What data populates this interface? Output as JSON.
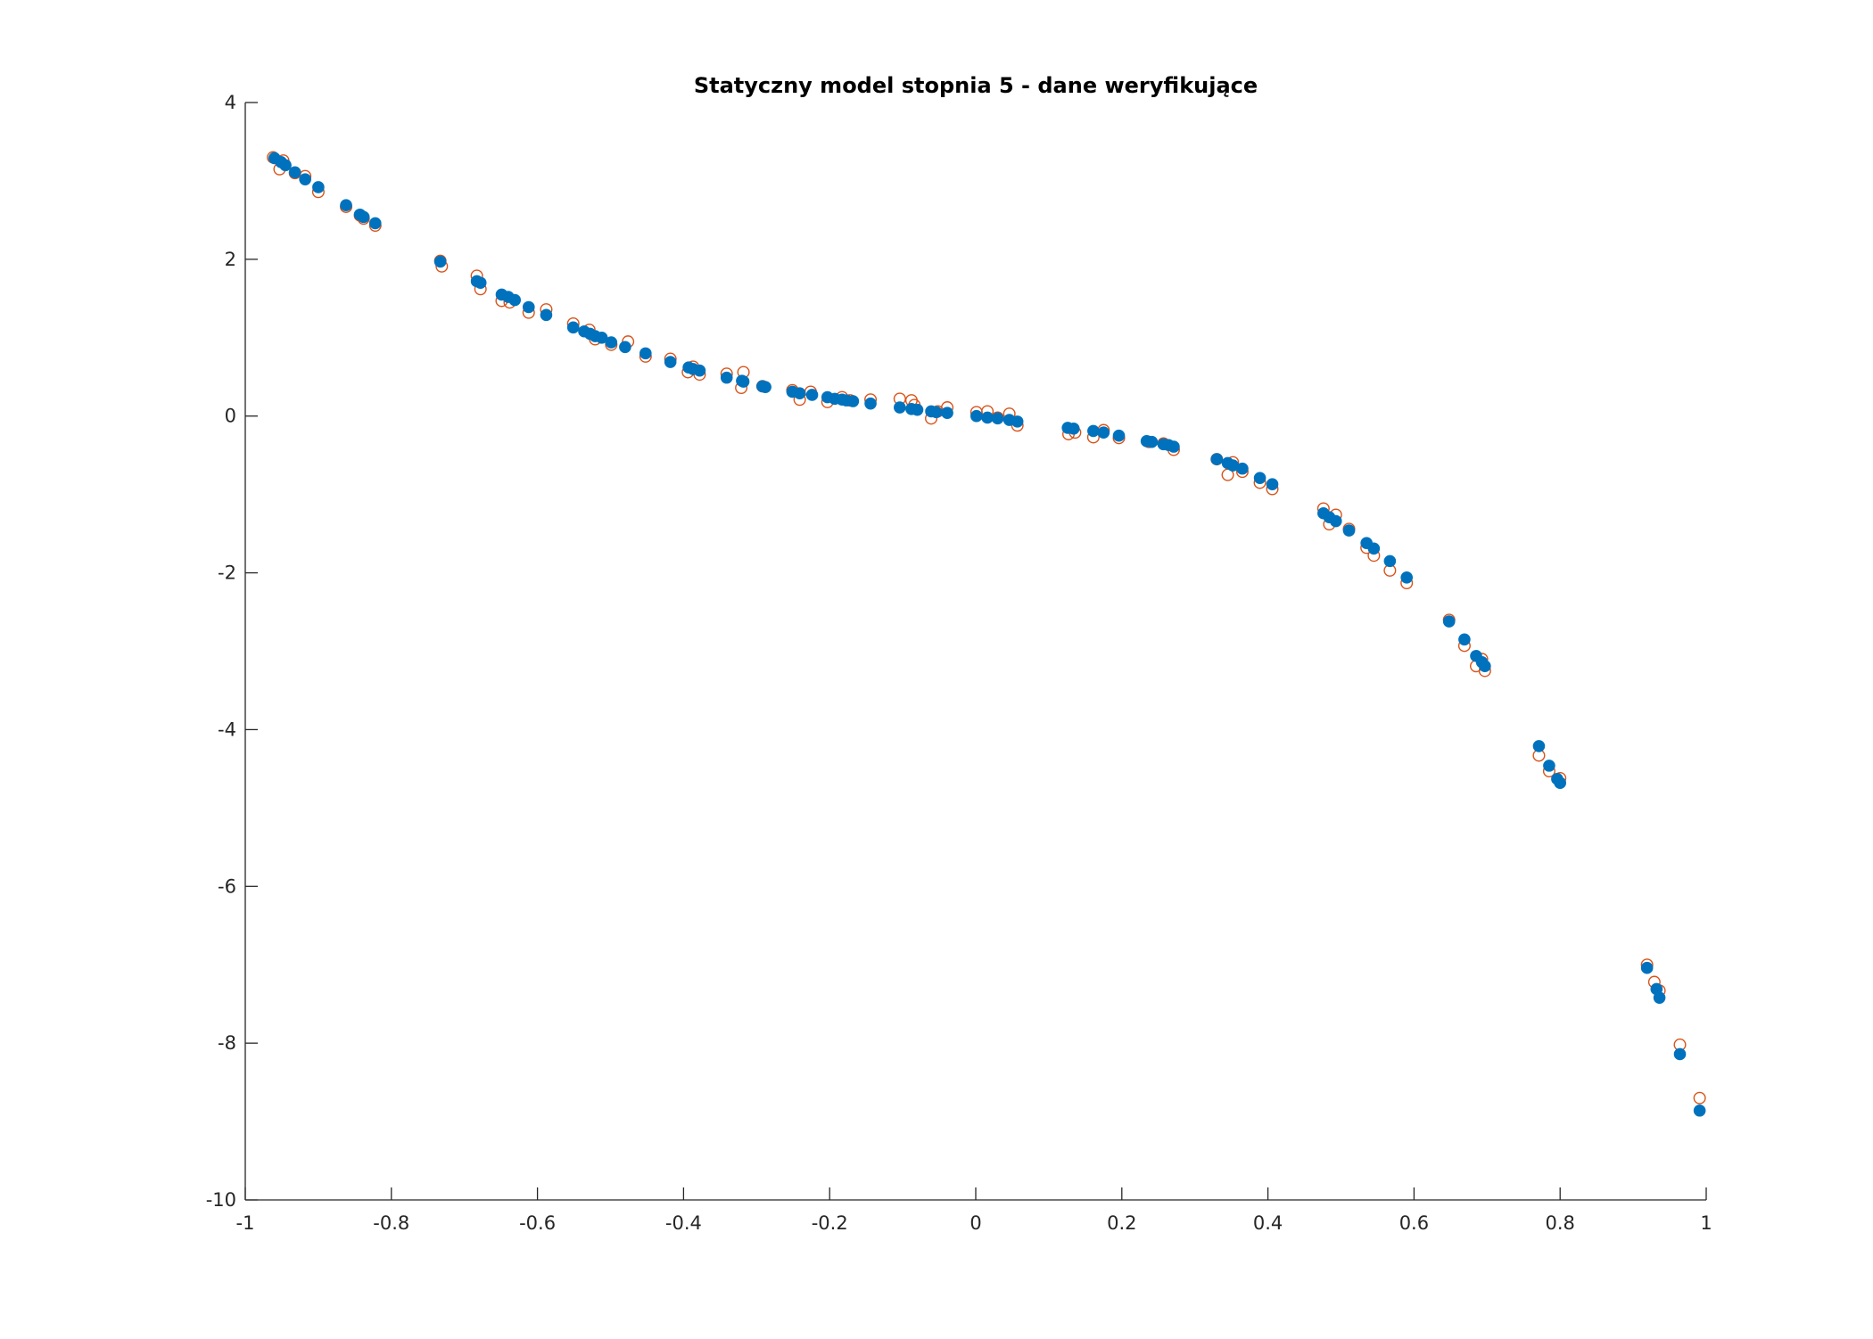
{
  "chart_data": {
    "type": "scatter",
    "title": "Statyczny model stopnia 5 - dane weryfikujące",
    "xlabel": "",
    "ylabel": "",
    "xlim": [
      -1,
      1
    ],
    "ylim": [
      -10,
      4
    ],
    "xticks": [
      -1,
      -0.8,
      -0.6,
      -0.4,
      -0.2,
      0,
      0.2,
      0.4,
      0.6,
      0.8,
      1
    ],
    "yticks": [
      -10,
      -8,
      -6,
      -4,
      -2,
      0,
      2,
      4
    ],
    "xtick_labels": [
      "-1",
      "-0.8",
      "-0.6",
      "-0.4",
      "-0.2",
      "0",
      "0.2",
      "0.4",
      "0.6",
      "0.8",
      "1"
    ],
    "ytick_labels": [
      "-10",
      "-8",
      "-6",
      "-4",
      "-2",
      "0",
      "2",
      "4"
    ],
    "grid": false,
    "legend": "none",
    "colors": {
      "model": "#0072BD",
      "data": "#D95319",
      "axis": "#262626"
    },
    "series": [
      {
        "marker": "open-circle",
        "color": "#D95319",
        "points": [
          [
            -0.962,
            3.3
          ],
          [
            -0.953,
            3.15
          ],
          [
            -0.948,
            3.26
          ],
          [
            -0.932,
            3.1
          ],
          [
            -0.918,
            3.06
          ],
          [
            -0.9,
            2.86
          ],
          [
            -0.862,
            2.67
          ],
          [
            -0.843,
            2.56
          ],
          [
            -0.838,
            2.52
          ],
          [
            -0.822,
            2.43
          ],
          [
            -0.733,
            1.98
          ],
          [
            -0.731,
            1.91
          ],
          [
            -0.683,
            1.79
          ],
          [
            -0.678,
            1.62
          ],
          [
            -0.649,
            1.47
          ],
          [
            -0.638,
            1.45
          ],
          [
            -0.612,
            1.32
          ],
          [
            -0.588,
            1.36
          ],
          [
            -0.551,
            1.18
          ],
          [
            -0.529,
            1.1
          ],
          [
            -0.521,
            0.98
          ],
          [
            -0.499,
            0.91
          ],
          [
            -0.476,
            0.95
          ],
          [
            -0.452,
            0.76
          ],
          [
            -0.418,
            0.73
          ],
          [
            -0.394,
            0.56
          ],
          [
            -0.387,
            0.63
          ],
          [
            -0.378,
            0.53
          ],
          [
            -0.341,
            0.54
          ],
          [
            -0.321,
            0.36
          ],
          [
            -0.318,
            0.56
          ],
          [
            -0.292,
            0.38
          ],
          [
            -0.251,
            0.33
          ],
          [
            -0.241,
            0.21
          ],
          [
            -0.226,
            0.31
          ],
          [
            -0.203,
            0.18
          ],
          [
            -0.183,
            0.24
          ],
          [
            -0.172,
            0.2
          ],
          [
            -0.144,
            0.21
          ],
          [
            -0.104,
            0.22
          ],
          [
            -0.088,
            0.2
          ],
          [
            -0.084,
            0.14
          ],
          [
            -0.061,
            -0.03
          ],
          [
            -0.052,
            0.06
          ],
          [
            -0.039,
            0.11
          ],
          [
            0.001,
            0.05
          ],
          [
            0.016,
            0.06
          ],
          [
            0.03,
            -0.02
          ],
          [
            0.046,
            0.03
          ],
          [
            0.057,
            -0.12
          ],
          [
            0.127,
            -0.23
          ],
          [
            0.136,
            -0.21
          ],
          [
            0.161,
            -0.27
          ],
          [
            0.175,
            -0.18
          ],
          [
            0.196,
            -0.28
          ],
          [
            0.237,
            -0.33
          ],
          [
            0.257,
            -0.35
          ],
          [
            0.271,
            -0.43
          ],
          [
            0.33,
            -0.55
          ],
          [
            0.345,
            -0.75
          ],
          [
            0.352,
            -0.59
          ],
          [
            0.365,
            -0.71
          ],
          [
            0.389,
            -0.85
          ],
          [
            0.406,
            -0.93
          ],
          [
            0.476,
            -1.18
          ],
          [
            0.484,
            -1.38
          ],
          [
            0.493,
            -1.26
          ],
          [
            0.511,
            -1.44
          ],
          [
            0.535,
            -1.68
          ],
          [
            0.545,
            -1.78
          ],
          [
            0.567,
            -1.97
          ],
          [
            0.59,
            -2.13
          ],
          [
            0.648,
            -2.6
          ],
          [
            0.669,
            -2.93
          ],
          [
            0.685,
            -3.19
          ],
          [
            0.693,
            -3.1
          ],
          [
            0.697,
            -3.25
          ],
          [
            0.771,
            -4.33
          ],
          [
            0.785,
            -4.53
          ],
          [
            0.8,
            -4.62
          ],
          [
            0.919,
            -7.0
          ],
          [
            0.929,
            -7.22
          ],
          [
            0.936,
            -7.33
          ],
          [
            0.964,
            -8.02
          ],
          [
            0.991,
            -8.7
          ]
        ]
      },
      {
        "marker": "filled-circle",
        "color": "#0072BD",
        "points": [
          [
            -0.96,
            3.29
          ],
          [
            -0.951,
            3.24
          ],
          [
            -0.945,
            3.2
          ],
          [
            -0.932,
            3.11
          ],
          [
            -0.918,
            3.02
          ],
          [
            -0.9,
            2.92
          ],
          [
            -0.862,
            2.69
          ],
          [
            -0.843,
            2.57
          ],
          [
            -0.838,
            2.54
          ],
          [
            -0.822,
            2.46
          ],
          [
            -0.733,
            1.97
          ],
          [
            -0.683,
            1.72
          ],
          [
            -0.678,
            1.7
          ],
          [
            -0.649,
            1.55
          ],
          [
            -0.64,
            1.52
          ],
          [
            -0.631,
            1.48
          ],
          [
            -0.612,
            1.39
          ],
          [
            -0.588,
            1.29
          ],
          [
            -0.551,
            1.13
          ],
          [
            -0.536,
            1.08
          ],
          [
            -0.528,
            1.05
          ],
          [
            -0.521,
            1.02
          ],
          [
            -0.512,
            1.0
          ],
          [
            -0.499,
            0.94
          ],
          [
            -0.48,
            0.88
          ],
          [
            -0.452,
            0.8
          ],
          [
            -0.418,
            0.69
          ],
          [
            -0.393,
            0.62
          ],
          [
            -0.387,
            0.6
          ],
          [
            -0.378,
            0.58
          ],
          [
            -0.341,
            0.49
          ],
          [
            -0.32,
            0.45
          ],
          [
            -0.318,
            0.44
          ],
          [
            -0.292,
            0.38
          ],
          [
            -0.288,
            0.37
          ],
          [
            -0.251,
            0.31
          ],
          [
            -0.241,
            0.29
          ],
          [
            -0.224,
            0.27
          ],
          [
            -0.203,
            0.24
          ],
          [
            -0.193,
            0.22
          ],
          [
            -0.183,
            0.21
          ],
          [
            -0.177,
            0.2
          ],
          [
            -0.168,
            0.19
          ],
          [
            -0.144,
            0.16
          ],
          [
            -0.104,
            0.11
          ],
          [
            -0.088,
            0.09
          ],
          [
            -0.08,
            0.08
          ],
          [
            -0.061,
            0.06
          ],
          [
            -0.054,
            0.05
          ],
          [
            -0.039,
            0.04
          ],
          [
            0.001,
            0.0
          ],
          [
            0.016,
            -0.02
          ],
          [
            0.03,
            -0.03
          ],
          [
            0.046,
            -0.05
          ],
          [
            0.057,
            -0.07
          ],
          [
            0.126,
            -0.15
          ],
          [
            0.134,
            -0.16
          ],
          [
            0.161,
            -0.19
          ],
          [
            0.175,
            -0.21
          ],
          [
            0.196,
            -0.25
          ],
          [
            0.234,
            -0.32
          ],
          [
            0.241,
            -0.33
          ],
          [
            0.257,
            -0.36
          ],
          [
            0.264,
            -0.37
          ],
          [
            0.271,
            -0.39
          ],
          [
            0.33,
            -0.55
          ],
          [
            0.345,
            -0.6
          ],
          [
            0.352,
            -0.63
          ],
          [
            0.365,
            -0.67
          ],
          [
            0.389,
            -0.79
          ],
          [
            0.406,
            -0.87
          ],
          [
            0.476,
            -1.24
          ],
          [
            0.484,
            -1.29
          ],
          [
            0.493,
            -1.34
          ],
          [
            0.511,
            -1.46
          ],
          [
            0.535,
            -1.62
          ],
          [
            0.545,
            -1.69
          ],
          [
            0.567,
            -1.85
          ],
          [
            0.59,
            -2.06
          ],
          [
            0.648,
            -2.62
          ],
          [
            0.669,
            -2.85
          ],
          [
            0.685,
            -3.06
          ],
          [
            0.693,
            -3.14
          ],
          [
            0.697,
            -3.19
          ],
          [
            0.771,
            -4.21
          ],
          [
            0.785,
            -4.46
          ],
          [
            0.796,
            -4.63
          ],
          [
            0.8,
            -4.68
          ],
          [
            0.919,
            -7.04
          ],
          [
            0.932,
            -7.31
          ],
          [
            0.936,
            -7.42
          ],
          [
            0.964,
            -8.14
          ],
          [
            0.991,
            -8.86
          ]
        ]
      }
    ]
  }
}
